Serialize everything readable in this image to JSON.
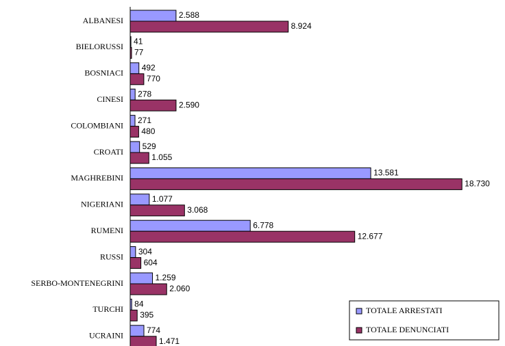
{
  "chart_data": {
    "type": "barh",
    "categories": [
      "ALBANESI",
      "BIELORUSSI",
      "BOSNIACI",
      "CINESI",
      "COLOMBIANI",
      "CROATI",
      "MAGHREBINI",
      "NIGERIANI",
      "RUMENI",
      "RUSSI",
      "SERBO-MONTENEGRINI",
      "TURCHI",
      "UCRAINI"
    ],
    "series": [
      {
        "name": "TOTALE ARRESTATI",
        "color": "#9999ff",
        "values": [
          2588,
          41,
          492,
          278,
          271,
          529,
          13581,
          1077,
          6778,
          304,
          1259,
          84,
          774
        ],
        "value_labels": [
          "2.588",
          "41",
          "492",
          "278",
          "271",
          "529",
          "13.581",
          "1.077",
          "6.778",
          "304",
          "1.259",
          "84",
          "774"
        ]
      },
      {
        "name": "TOTALE DENUNCIATI",
        "color": "#993366",
        "values": [
          8924,
          77,
          770,
          2590,
          480,
          1055,
          18730,
          3068,
          12677,
          604,
          2060,
          395,
          1471
        ],
        "value_labels": [
          "8.924",
          "77",
          "770",
          "2.590",
          "480",
          "1.055",
          "18.730",
          "3.068",
          "12.677",
          "604",
          "2.060",
          "395",
          "1.471"
        ]
      }
    ],
    "xlim": [
      0,
      20000
    ],
    "legend": "lower right"
  }
}
